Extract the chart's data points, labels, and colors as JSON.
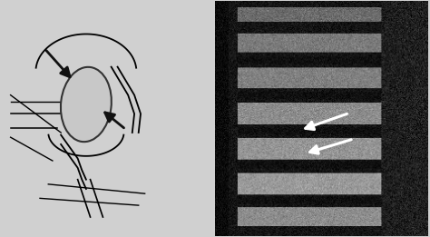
{
  "figure_width": 4.74,
  "figure_height": 2.61,
  "dpi": 100,
  "bg_color": "#d0d0d0",
  "left_panel_bg": "#ffffff",
  "arrow_color": "#111111",
  "white_arrow_color": "#ffffff",
  "ellipse_color": "#c8c8c8",
  "ellipse_edge": "#333333"
}
